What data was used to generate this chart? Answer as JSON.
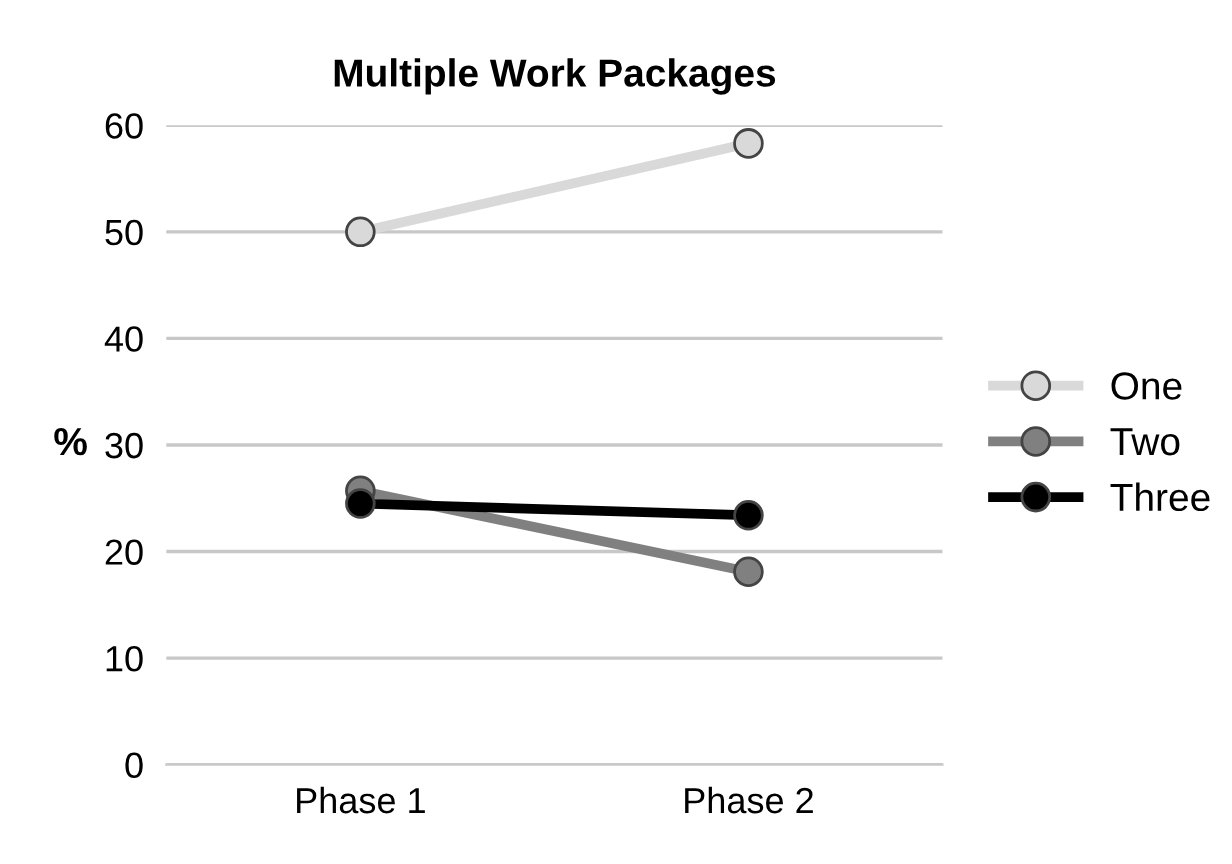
{
  "chart_data": {
    "type": "line",
    "title": "Multiple Work Packages",
    "ylabel": "%",
    "categories": [
      "Phase 1",
      "Phase 2"
    ],
    "series": [
      {
        "name": "One",
        "color": "#d9d9d9",
        "values": [
          50,
          58.3
        ]
      },
      {
        "name": "Two",
        "color": "#808080",
        "values": [
          25.7,
          18.1
        ]
      },
      {
        "name": "Three",
        "color": "#000000",
        "values": [
          24.5,
          23.4
        ]
      }
    ],
    "ylim": [
      0,
      60
    ],
    "yticks": [
      0,
      10,
      20,
      30,
      40,
      50,
      60
    ],
    "grid": "y",
    "legend": "right",
    "marker": "circle",
    "line_style": "solid"
  }
}
